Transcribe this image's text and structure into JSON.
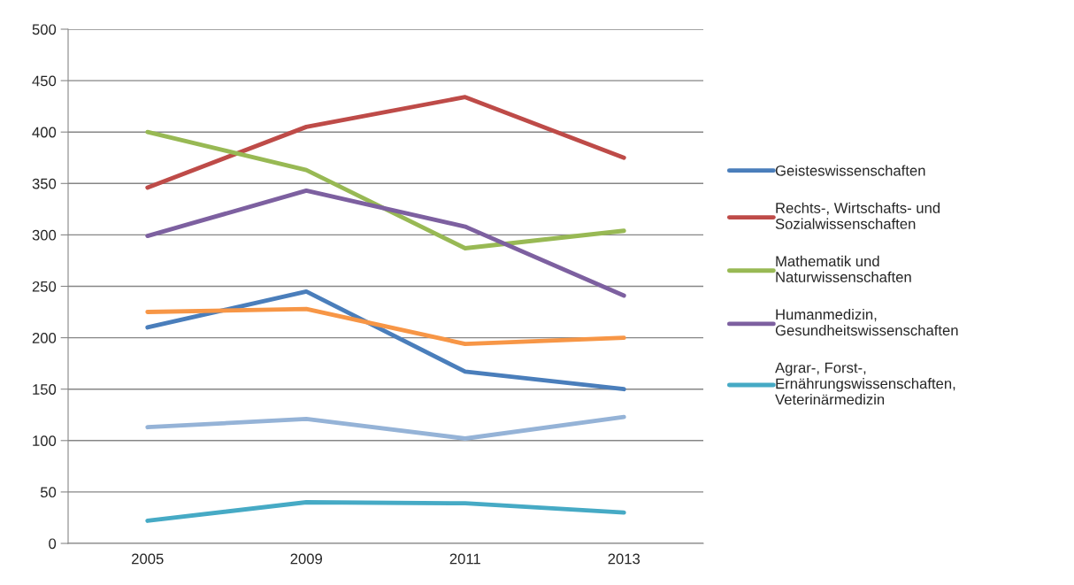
{
  "chart_data": {
    "type": "line",
    "categories": [
      "2005",
      "2009",
      "2011",
      "2013"
    ],
    "series": [
      {
        "name": "Geisteswissenschaften",
        "color": "#4a7ebb",
        "values": [
          210,
          245,
          167,
          150
        ]
      },
      {
        "name": "Rechts-, Wirtschafts- und\nSozialwissenschaften",
        "color": "#be4b48",
        "values": [
          346,
          405,
          434,
          375
        ]
      },
      {
        "name": "Mathematik und\nNaturwissenschaften",
        "color": "#98b954",
        "values": [
          400,
          363,
          287,
          304
        ]
      },
      {
        "name": "Humanmedizin,\nGesundheitswissenschaften",
        "color": "#7d60a0",
        "values": [
          299,
          343,
          308,
          241
        ]
      },
      {
        "name": "Agrar-, Forst-,\nErnährungswissenschaften,\nVeterinärmedizin",
        "color": "#46aac5",
        "values": [
          22,
          40,
          39,
          30
        ]
      },
      {
        "color": "#f79646",
        "values": [
          225,
          228,
          194,
          200
        ]
      },
      {
        "color": "#95b3d7",
        "values": [
          113,
          121,
          102,
          123
        ]
      }
    ],
    "ylim": [
      0,
      500
    ],
    "yticks": [
      0,
      50,
      100,
      150,
      200,
      250,
      300,
      350,
      400,
      450,
      500
    ],
    "grid": "y",
    "legend": "right",
    "marker": "none",
    "line_style": "solid"
  }
}
